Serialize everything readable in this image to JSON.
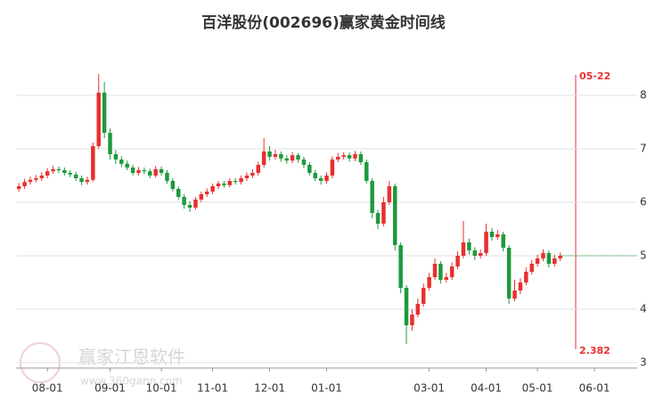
{
  "chart_data": {
    "type": "candlestick",
    "title": "百洋股份(002696)赢家黄金时间线",
    "categories": [
      null,
      null,
      null,
      null,
      null,
      "08-01",
      null,
      null,
      null,
      null,
      null,
      null,
      null,
      null,
      null,
      null,
      "09-01",
      null,
      null,
      null,
      null,
      null,
      null,
      null,
      null,
      "10-01",
      null,
      null,
      null,
      null,
      null,
      null,
      null,
      null,
      "11-01",
      null,
      null,
      null,
      null,
      null,
      null,
      null,
      null,
      null,
      "12-01",
      null,
      null,
      null,
      null,
      null,
      null,
      null,
      null,
      null,
      "01-01",
      null,
      null,
      null,
      null,
      null,
      null,
      null,
      null,
      null,
      null,
      null,
      null,
      null,
      null,
      null,
      null,
      null,
      "03-01",
      null,
      null,
      null,
      null,
      null,
      null,
      null,
      null,
      null,
      "04-01",
      null,
      null,
      null,
      null,
      null,
      null,
      null,
      null,
      "05-01",
      null,
      null,
      null,
      null,
      null,
      null,
      null,
      null,
      null,
      "06-01",
      null,
      null,
      null,
      null,
      null,
      null,
      null
    ],
    "open": [
      6.25,
      6.3,
      6.38,
      6.42,
      6.45,
      6.5,
      6.58,
      6.62,
      6.6,
      6.55,
      6.52,
      6.45,
      6.38,
      6.42,
      7.05,
      8.05,
      7.3,
      6.9,
      6.8,
      6.72,
      6.65,
      6.55,
      6.6,
      6.58,
      6.5,
      6.62,
      6.55,
      6.4,
      6.25,
      6.1,
      5.95,
      5.9,
      6.05,
      6.15,
      6.2,
      6.3,
      6.35,
      6.32,
      6.4,
      6.38,
      6.45,
      6.5,
      6.55,
      6.7,
      6.95,
      6.85,
      6.9,
      6.82,
      6.78,
      6.88,
      6.8,
      6.7,
      6.55,
      6.45,
      6.4,
      6.5,
      6.8,
      6.85,
      6.88,
      6.82,
      6.9,
      6.75,
      6.4,
      5.8,
      5.6,
      6.0,
      6.3,
      5.2,
      4.4,
      3.7,
      3.9,
      4.1,
      4.4,
      4.6,
      4.85,
      4.55,
      4.6,
      4.8,
      5.0,
      5.25,
      5.1,
      5.0,
      5.05,
      5.45,
      5.35,
      5.4,
      5.15,
      4.2,
      4.35,
      4.5,
      4.7,
      4.85,
      4.95,
      5.05,
      4.85,
      4.95,
      null,
      null,
      null,
      null,
      null,
      null,
      null,
      null,
      null,
      null,
      null,
      null,
      null
    ],
    "close": [
      6.3,
      6.38,
      6.42,
      6.45,
      6.5,
      6.58,
      6.62,
      6.6,
      6.55,
      6.52,
      6.45,
      6.38,
      6.42,
      7.05,
      8.05,
      7.3,
      6.9,
      6.8,
      6.72,
      6.65,
      6.55,
      6.6,
      6.58,
      6.5,
      6.62,
      6.55,
      6.4,
      6.25,
      6.1,
      5.95,
      5.9,
      6.05,
      6.15,
      6.2,
      6.3,
      6.35,
      6.32,
      6.4,
      6.38,
      6.45,
      6.5,
      6.55,
      6.7,
      6.95,
      6.85,
      6.9,
      6.82,
      6.78,
      6.88,
      6.8,
      6.7,
      6.55,
      6.45,
      6.4,
      6.5,
      6.8,
      6.85,
      6.88,
      6.82,
      6.9,
      6.75,
      6.4,
      5.8,
      5.6,
      6.0,
      6.3,
      5.2,
      4.4,
      3.7,
      3.9,
      4.1,
      4.4,
      4.6,
      4.85,
      4.55,
      4.6,
      4.8,
      5.0,
      5.25,
      5.1,
      5.0,
      5.05,
      5.45,
      5.35,
      5.4,
      5.15,
      4.2,
      4.35,
      4.5,
      4.7,
      4.85,
      4.95,
      5.05,
      4.85,
      4.95,
      5.0,
      null,
      null,
      null,
      null,
      null,
      null,
      null,
      null,
      null,
      null,
      null,
      null,
      null
    ],
    "high": [
      6.36,
      6.44,
      6.48,
      6.51,
      6.56,
      6.64,
      6.68,
      6.67,
      6.65,
      6.6,
      6.57,
      6.5,
      6.48,
      7.12,
      8.4,
      8.25,
      7.38,
      6.98,
      6.86,
      6.78,
      6.7,
      6.66,
      6.65,
      6.63,
      6.68,
      6.67,
      6.6,
      6.45,
      6.3,
      6.15,
      6.02,
      6.1,
      6.2,
      6.26,
      6.35,
      6.4,
      6.4,
      6.45,
      6.45,
      6.5,
      6.56,
      6.62,
      6.76,
      7.2,
      7.05,
      6.98,
      6.95,
      6.88,
      6.94,
      6.92,
      6.85,
      6.75,
      6.6,
      6.5,
      6.56,
      6.86,
      6.92,
      6.94,
      6.93,
      6.96,
      6.95,
      6.8,
      6.45,
      5.86,
      6.1,
      6.4,
      6.35,
      5.25,
      4.45,
      4.0,
      4.2,
      4.48,
      4.68,
      4.95,
      4.9,
      4.68,
      4.88,
      5.08,
      5.65,
      5.32,
      5.16,
      5.12,
      5.6,
      5.52,
      5.48,
      5.45,
      5.2,
      4.55,
      4.58,
      4.78,
      4.92,
      5.02,
      5.12,
      5.1,
      5.02,
      5.06,
      null,
      null,
      null,
      null,
      null,
      null,
      null,
      null,
      null,
      null,
      null,
      null,
      null
    ],
    "low": [
      6.2,
      6.25,
      6.33,
      6.37,
      6.4,
      6.45,
      6.53,
      6.55,
      6.5,
      6.47,
      6.4,
      6.32,
      6.33,
      6.38,
      7.0,
      7.2,
      6.8,
      6.72,
      6.66,
      6.6,
      6.5,
      6.5,
      6.53,
      6.45,
      6.46,
      6.5,
      6.35,
      6.2,
      6.05,
      5.88,
      5.82,
      5.86,
      6.0,
      6.1,
      6.15,
      6.25,
      6.27,
      6.28,
      6.33,
      6.33,
      6.4,
      6.45,
      6.5,
      6.65,
      6.78,
      6.8,
      6.76,
      6.72,
      6.73,
      6.74,
      6.64,
      6.5,
      6.4,
      6.33,
      6.35,
      6.45,
      6.75,
      6.8,
      6.76,
      6.77,
      6.7,
      6.35,
      5.7,
      5.5,
      5.55,
      5.95,
      5.1,
      4.3,
      3.35,
      3.6,
      3.85,
      4.05,
      4.35,
      4.55,
      4.48,
      4.5,
      4.55,
      4.75,
      4.95,
      5.02,
      4.92,
      4.95,
      5.0,
      5.28,
      5.3,
      5.08,
      4.1,
      4.15,
      4.28,
      4.45,
      4.65,
      4.8,
      4.9,
      4.78,
      4.8,
      4.9,
      null,
      null,
      null,
      null,
      null,
      null,
      null,
      null,
      null,
      null,
      null,
      null,
      null
    ],
    "up_color": "#e8302e",
    "down_color": "#1d9a3c",
    "ylim": [
      2.9,
      8.9
    ],
    "yticks": [
      3,
      4,
      5,
      6,
      7,
      8
    ],
    "grid": true,
    "marker": {
      "date": "05-22",
      "label": "2.382"
    },
    "watermark": {
      "name": "赢家江恩软件",
      "url": "www.360gann.com"
    }
  }
}
